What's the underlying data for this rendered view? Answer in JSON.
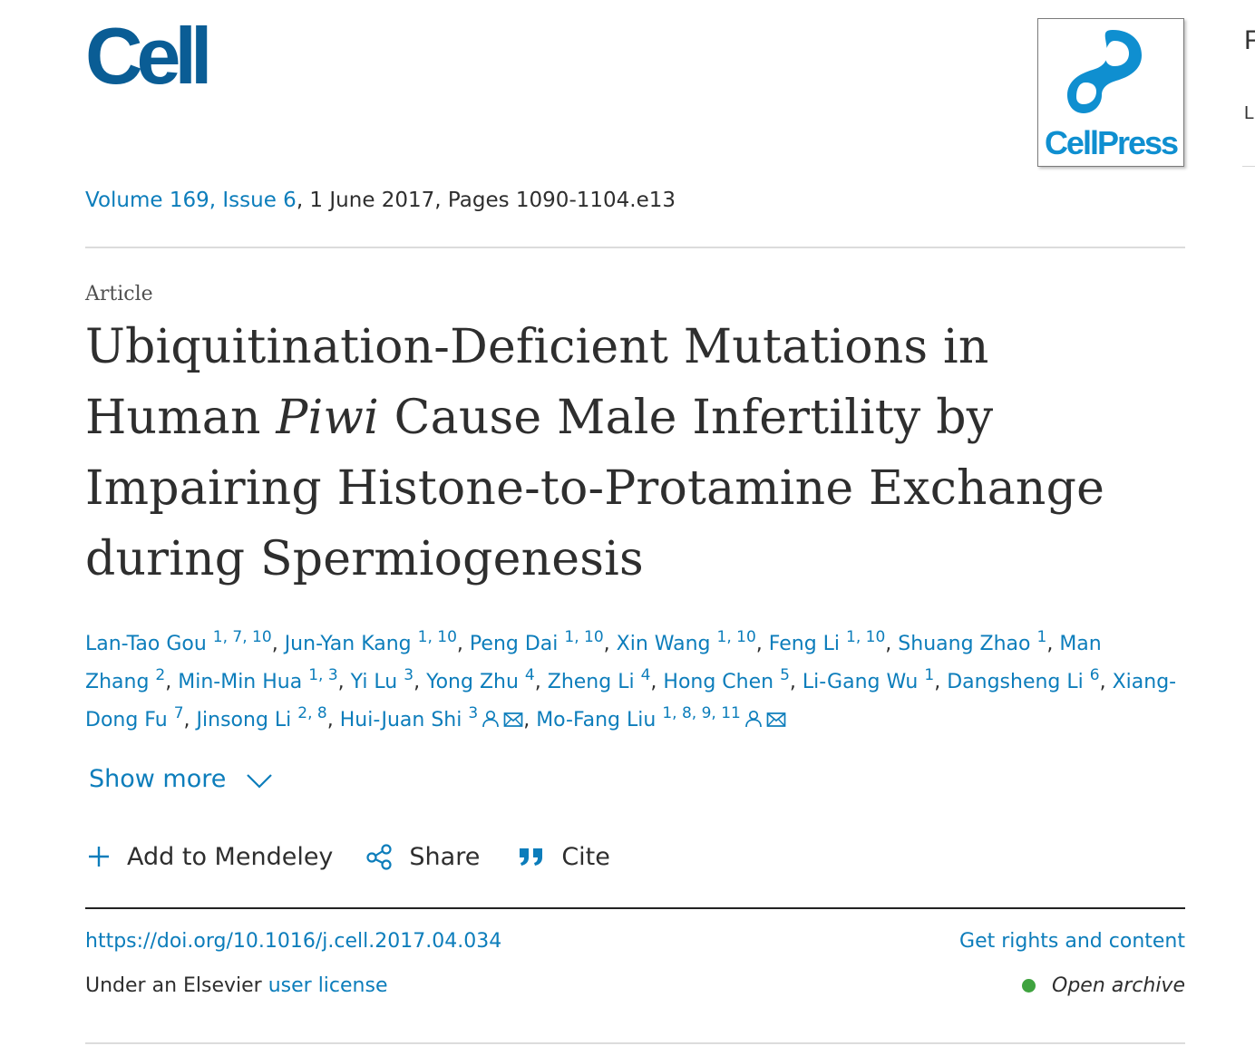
{
  "journal": {
    "logo_text": "Cell",
    "publisher_logo_text": "CellPress",
    "brand_color": "#0a5d95",
    "publisher_color": "#0f8fd0"
  },
  "edge_fragments": [
    "F",
    "L"
  ],
  "issue": {
    "volume": "Volume 169",
    "issue": "Issue 6",
    "date_pages": ", 1 June 2017, Pages 1090-1104.e13"
  },
  "article_type": "Article",
  "title": {
    "part1": "Ubiquitination-Deficient Mutations in Human ",
    "italic": "Piwi",
    "part2": " Cause Male Infertility by Impairing Histone-to-Protamine Exchange during Spermiogenesis"
  },
  "authors": [
    {
      "name": "Lan-Tao Gou",
      "aff": "1, 7, 10"
    },
    {
      "name": "Jun-Yan Kang",
      "aff": "1, 10"
    },
    {
      "name": "Peng Dai",
      "aff": "1, 10"
    },
    {
      "name": "Xin Wang",
      "aff": "1, 10"
    },
    {
      "name": "Feng Li",
      "aff": "1, 10"
    },
    {
      "name": "Shuang Zhao",
      "aff": "1"
    },
    {
      "name": "Man Zhang",
      "aff": "2"
    },
    {
      "name": "Min-Min Hua",
      "aff": "1, 3"
    },
    {
      "name": "Yi Lu",
      "aff": "3"
    },
    {
      "name": "Yong Zhu",
      "aff": "4"
    },
    {
      "name": "Zheng Li",
      "aff": "4"
    },
    {
      "name": "Hong Chen",
      "aff": "5"
    },
    {
      "name": "Li-Gang Wu",
      "aff": "1"
    },
    {
      "name": "Dangsheng Li",
      "aff": "6"
    },
    {
      "name": "Xiang-Dong Fu",
      "aff": "7"
    },
    {
      "name": "Jinsong Li",
      "aff": "2, 8"
    },
    {
      "name": "Hui-Juan Shi",
      "aff": "3",
      "corresponding": true
    },
    {
      "name": "Mo-Fang Liu",
      "aff": "1, 8, 9, 11",
      "corresponding": true
    }
  ],
  "show_more": "Show more",
  "actions": {
    "mendeley": "Add to Mendeley",
    "share": "Share",
    "cite": "Cite"
  },
  "doi": "https://doi.org/10.1016/j.cell.2017.04.034",
  "rights": "Get rights and content",
  "license": {
    "prefix": "Under an Elsevier ",
    "link": "user license"
  },
  "open_archive": "Open archive",
  "colors": {
    "link": "#0c7dbb",
    "text": "#2e2e2e",
    "open_dot": "#3fa33f"
  }
}
